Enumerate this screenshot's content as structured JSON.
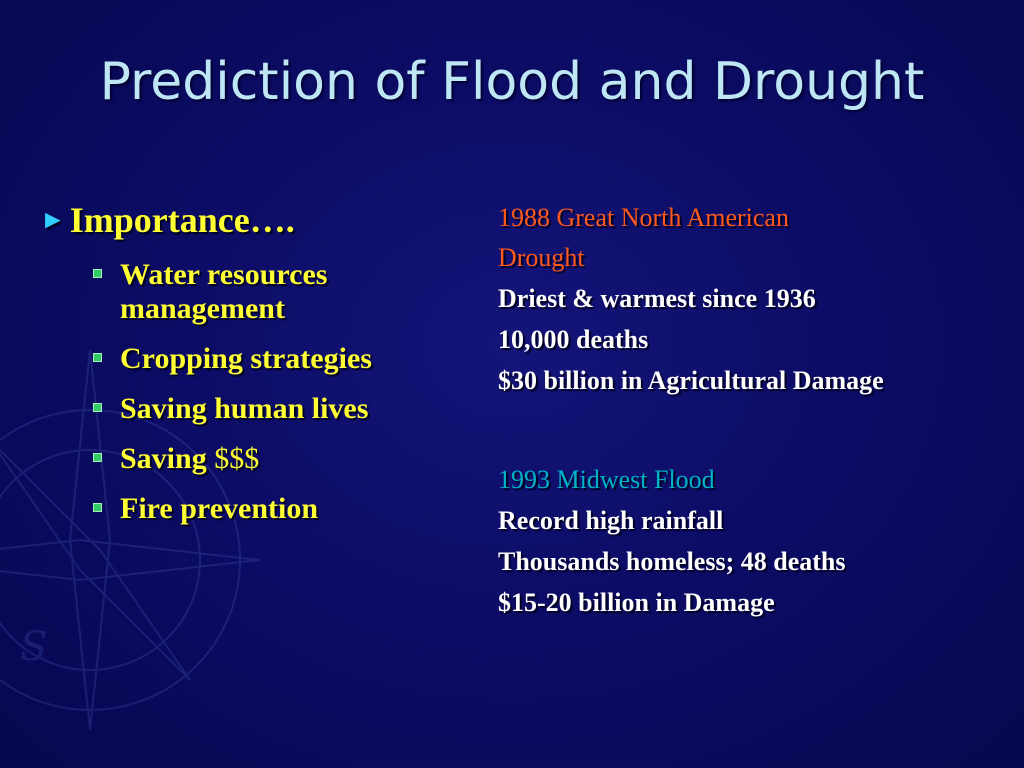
{
  "slide": {
    "title": "Prediction of Flood and Drought",
    "importance": {
      "label": "Importance….",
      "items": [
        {
          "line1": "Water resources",
          "line2": "management"
        },
        {
          "text": "Cropping strategies"
        },
        {
          "text": "Saving human lives"
        },
        {
          "text": "Saving",
          "suffix": "$$$"
        },
        {
          "text": "Fire prevention"
        }
      ]
    },
    "drought": {
      "heading_line1": "1988 Great North American",
      "heading_line2": "Drought",
      "facts": [
        "Driest & warmest since 1936",
        "10,000 deaths",
        "$30 billion in Agricultural Damage"
      ]
    },
    "flood": {
      "heading": "1993 Midwest Flood",
      "facts": [
        "Record high rainfall",
        "Thousands homeless; 48 deaths",
        "$15-20 billion in Damage"
      ]
    }
  },
  "colors": {
    "background": "#0a0a5c",
    "title": "#bfe6f5",
    "bullet_text": "#ffff33",
    "arrow": "#33ccff",
    "square_bullet": "#33cc66",
    "drought_heading": "#ff5a1a",
    "flood_heading": "#00b3c7",
    "body_text": "#ffffff"
  },
  "icons": {
    "main_bullet": "arrow-right-icon",
    "sub_bullet": "square-bullet-icon",
    "background": "compass-rose-icon"
  }
}
